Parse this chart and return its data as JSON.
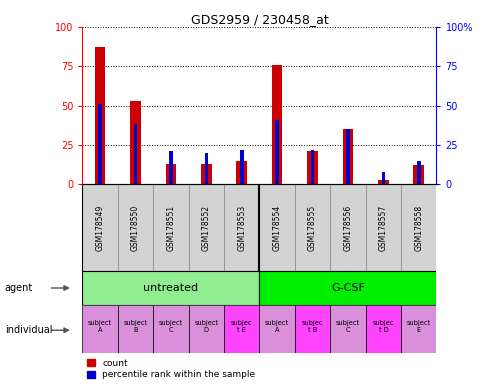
{
  "title": "GDS2959 / 230458_at",
  "samples": [
    "GSM178549",
    "GSM178550",
    "GSM178551",
    "GSM178552",
    "GSM178553",
    "GSM178554",
    "GSM178555",
    "GSM178556",
    "GSM178557",
    "GSM178558"
  ],
  "count_values": [
    87,
    53,
    13,
    13,
    15,
    76,
    21,
    35,
    3,
    12
  ],
  "percentile_values": [
    51,
    38,
    21,
    20,
    22,
    41,
    22,
    35,
    8,
    15
  ],
  "agent_colors": [
    "#90ee90",
    "#00ee00"
  ],
  "individual_labels": [
    "subject\nA",
    "subject\nB",
    "subject\nC",
    "subject\nD",
    "subjec\nt E",
    "subject\nA",
    "subjec\nt B",
    "subject\nC",
    "subjec\nt D",
    "subject\nE"
  ],
  "individual_highlight": [
    4,
    6,
    8
  ],
  "individual_color_normal": "#da8fda",
  "individual_color_highlight": "#ff44ff",
  "bar_color_count": "#cc0000",
  "bar_color_percentile": "#0000cc",
  "ylim": [
    0,
    100
  ],
  "yticks": [
    0,
    25,
    50,
    75,
    100
  ],
  "y2ticklabels": [
    "0",
    "25",
    "50",
    "75",
    "100%"
  ],
  "label_area_color": "#d3d3d3"
}
